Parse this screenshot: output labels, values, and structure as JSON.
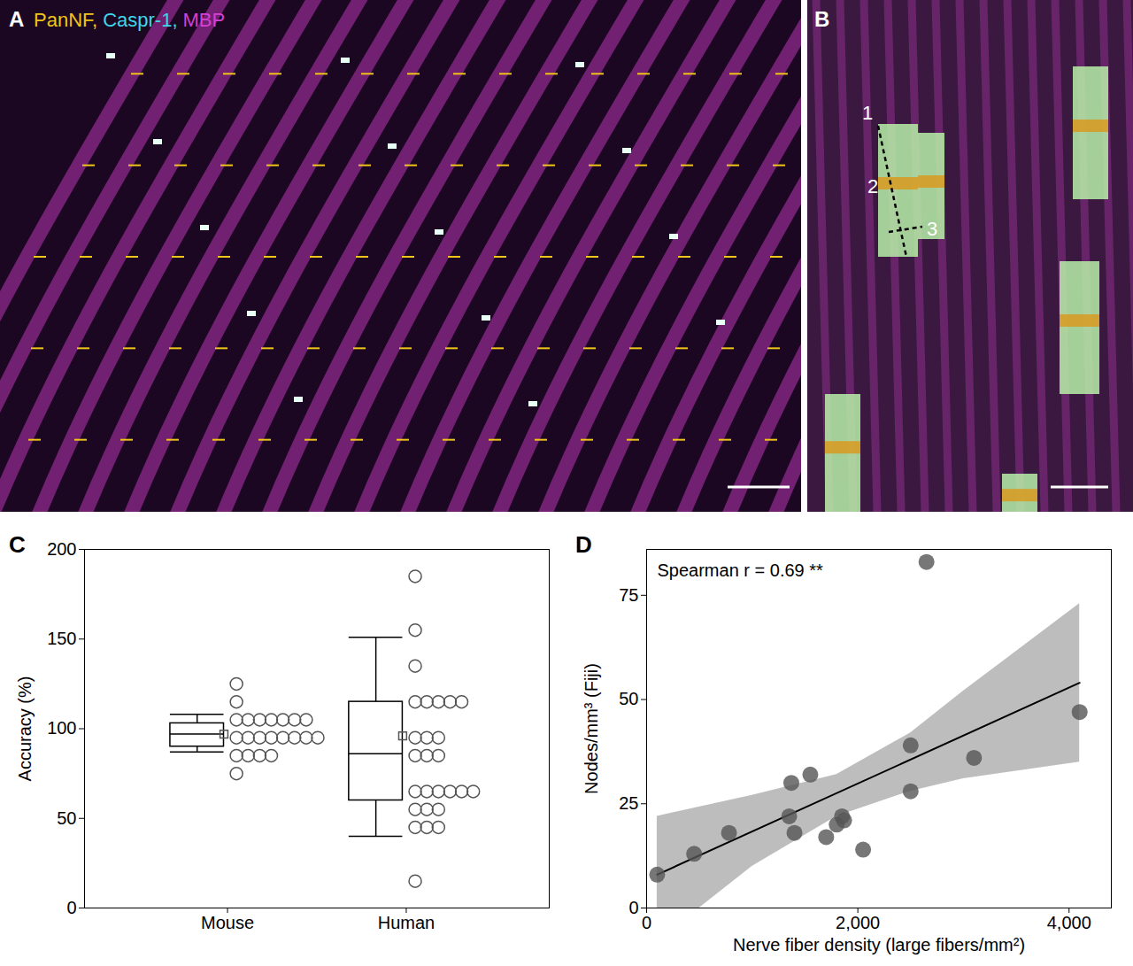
{
  "chart_data": [
    {
      "type": "image",
      "title": "A",
      "series": [
        {
          "name": "PanNF,",
          "color": "#f0c419"
        },
        {
          "name": "Caspr-1,",
          "color": "#3fd6e8"
        },
        {
          "name": "MBP",
          "color": "#d63fd6"
        }
      ]
    },
    {
      "type": "image",
      "title": "B",
      "annotations": [
        "1",
        "2",
        "3"
      ]
    },
    {
      "type": "box",
      "title": "C",
      "categories": [
        "Mouse",
        "Human"
      ],
      "ylabel": "Accuracy (%)",
      "ylim": [
        0,
        200
      ],
      "yticks": [
        0,
        50,
        100,
        150,
        200
      ],
      "color": "#555555",
      "box": [
        {
          "whisker_low": 87,
          "q1": 90,
          "median": 97,
          "q3": 103,
          "whisker_high": 108,
          "mean": 97
        },
        {
          "whisker_low": 40,
          "q1": 60,
          "median": 86,
          "q3": 115,
          "whisker_high": 151,
          "mean": 96
        }
      ],
      "values": [
        [
          125,
          115,
          105,
          105,
          105,
          105,
          105,
          105,
          105,
          95,
          95,
          95,
          95,
          95,
          95,
          95,
          95,
          85,
          85,
          85,
          85,
          75
        ],
        [
          185,
          155,
          135,
          115,
          115,
          115,
          115,
          115,
          95,
          95,
          95,
          85,
          85,
          85,
          65,
          65,
          65,
          65,
          65,
          65,
          55,
          55,
          55,
          45,
          45,
          45,
          15
        ]
      ]
    },
    {
      "type": "scatter",
      "title": "D",
      "xlabel": "Nerve fiber density (large fibers/mm²)",
      "ylabel": "Nodes/mm³ (Fiji)",
      "xlim": [
        0,
        4400
      ],
      "xticks": [
        0,
        2000,
        4000
      ],
      "ylim": [
        0,
        86
      ],
      "yticks": [
        0,
        25,
        50,
        75
      ],
      "color": "#555555",
      "annotations": [
        "Spearman r = 0.69 **"
      ],
      "x": [
        100,
        450,
        780,
        1370,
        1350,
        1400,
        1550,
        1700,
        1800,
        1850,
        1870,
        2050,
        2500,
        2500,
        2650,
        3100,
        4100
      ],
      "values": [
        8,
        13,
        18,
        30,
        22,
        18,
        32,
        17,
        20,
        22,
        21,
        14,
        39,
        28,
        83,
        36,
        47
      ],
      "fit": {
        "x": [
          100,
          4100
        ],
        "y": [
          8,
          54
        ]
      },
      "band": {
        "x": [
          100,
          1000,
          1800,
          2500,
          3000,
          4100
        ],
        "lower": [
          -8,
          10,
          22,
          28,
          31,
          35
        ],
        "upper": [
          22,
          27,
          32,
          42,
          52,
          73
        ]
      }
    }
  ]
}
